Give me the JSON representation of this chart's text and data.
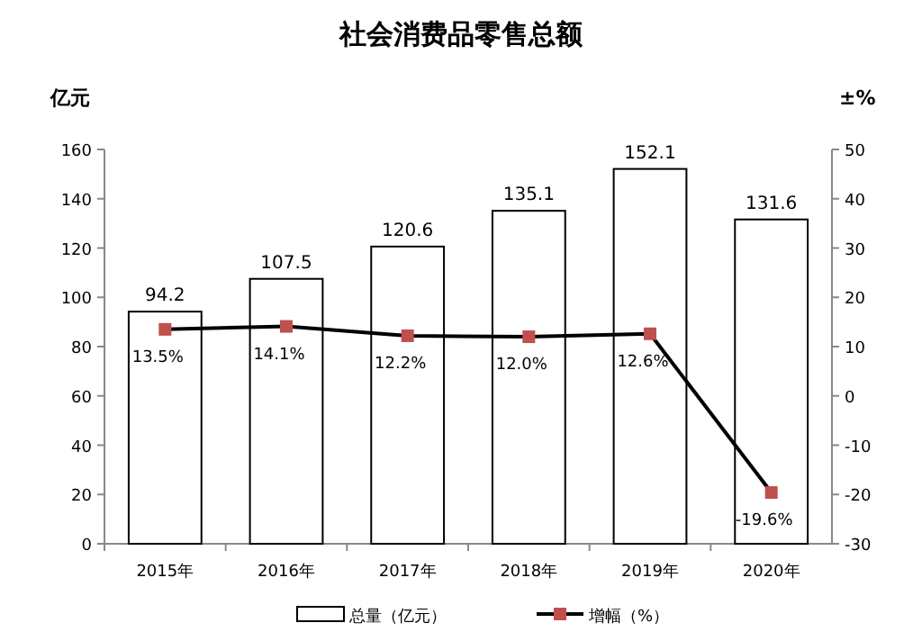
{
  "chart_data": {
    "type": "bar",
    "title": "社会消费品零售总额",
    "ylabel": "亿元",
    "y2label": "±%",
    "categories": [
      "2015年",
      "2016年",
      "2017年",
      "2018年",
      "2019年",
      "2020年"
    ],
    "series": [
      {
        "name": "总量（亿元）",
        "color": "#ffffff",
        "values": [
          94.2,
          107.5,
          120.6,
          135.1,
          152.1,
          131.6
        ],
        "value_labels": [
          "94.2",
          "107.5",
          "120.6",
          "135.1",
          "152.1",
          "131.6"
        ]
      },
      {
        "name": "增幅（%）",
        "type": "line",
        "axis": "y2",
        "color": "#000000",
        "marker": "square",
        "values": [
          13.5,
          14.1,
          12.2,
          12.0,
          12.6,
          -19.6
        ],
        "value_labels": [
          "13.5%",
          "14.1%",
          "12.2%",
          "12.0%",
          "12.6%",
          "-19.6%"
        ]
      }
    ],
    "ylim": [
      0,
      160
    ],
    "yticks": [
      0,
      20,
      40,
      60,
      80,
      100,
      120,
      140,
      160
    ],
    "y2lim": [
      -30,
      50
    ],
    "y2ticks": [
      -30,
      -20,
      -10,
      0,
      10,
      20,
      30,
      40,
      50
    ],
    "legend": "bottom",
    "grid": false
  }
}
